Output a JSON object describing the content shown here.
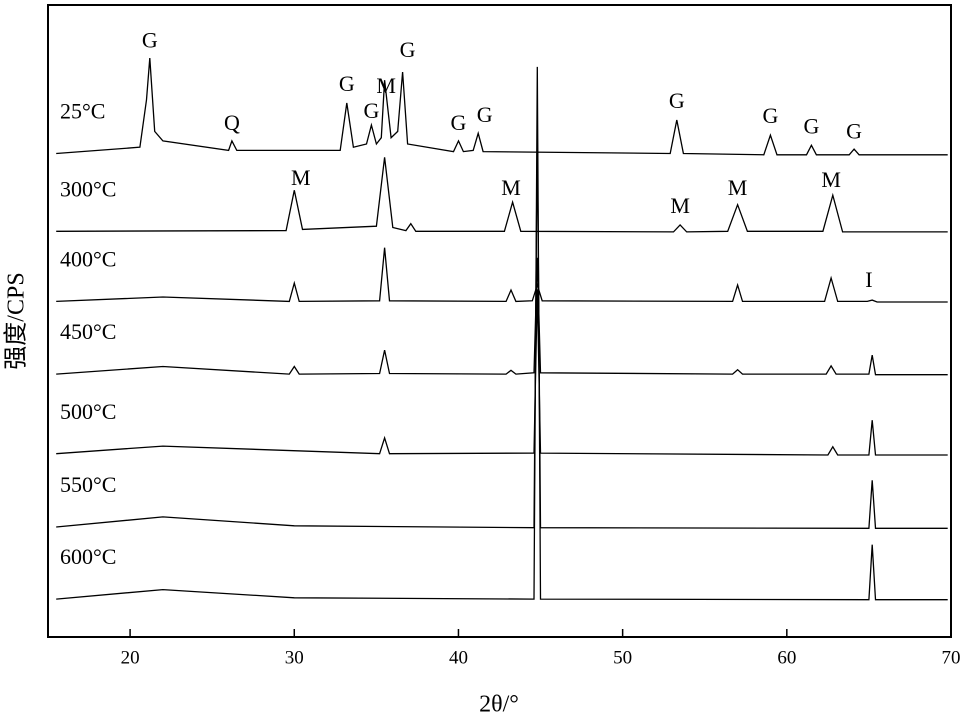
{
  "chart_data": {
    "type": "line",
    "xlabel": "2θ/°",
    "ylabel": "强度/CPS",
    "xlim": [
      15,
      70
    ],
    "xticks": [
      20,
      30,
      40,
      50,
      60,
      70
    ],
    "ylim": [
      0,
      100
    ],
    "color": "#000000",
    "series": [
      {
        "name": "25°C",
        "x": [
          15.5,
          20.6,
          21.0,
          21.2,
          21.5,
          22,
          26.0,
          26.2,
          26.5,
          32.8,
          33.2,
          33.6,
          34.4,
          34.7,
          35.0,
          35.3,
          35.5,
          35.9,
          36.3,
          36.6,
          36.9,
          39.7,
          40.0,
          40.3,
          40.9,
          41.2,
          41.5,
          52.9,
          53.3,
          53.7,
          58.6,
          59.0,
          59.4,
          61.2,
          61.5,
          61.8,
          63.8,
          64.1,
          64.4,
          69.8
        ],
        "values": [
          76.5,
          77.5,
          85,
          91.6,
          80,
          78.5,
          77,
          78.5,
          77,
          77,
          84.5,
          77.5,
          78,
          81,
          78,
          79,
          88.1,
          79,
          80,
          89.4,
          78,
          76.8,
          78.5,
          76.8,
          77,
          79.7,
          76.8,
          76.5,
          81.8,
          76.5,
          76.3,
          79.4,
          76.3,
          76.3,
          77.8,
          76.3,
          76.3,
          77.2,
          76.3,
          76.3
        ]
      },
      {
        "name": "300°C",
        "x": [
          15.5,
          29.5,
          30.0,
          30.5,
          35.0,
          35.5,
          36.0,
          36.8,
          37.1,
          37.4,
          42.8,
          43.3,
          43.8,
          53.1,
          53.5,
          53.9,
          56.4,
          57.0,
          57.6,
          62.2,
          62.8,
          63.4,
          69.8
        ],
        "values": [
          64.2,
          64.3,
          70.7,
          64.5,
          65,
          75.9,
          64.8,
          64.3,
          65.4,
          64.2,
          64.2,
          68.8,
          64.2,
          64.1,
          65.2,
          64.1,
          64.2,
          68.4,
          64.2,
          64.2,
          69.9,
          64.1,
          64.1
        ]
      },
      {
        "name": "400°C",
        "x": [
          15.5,
          22,
          29.7,
          30.0,
          30.3,
          35.2,
          35.5,
          35.8,
          42.9,
          43.2,
          43.5,
          44.5,
          44.8,
          45.1,
          56.7,
          57.0,
          57.3,
          62.3,
          62.7,
          63.1,
          64.9,
          65.2,
          65.5,
          69.8
        ],
        "values": [
          53.1,
          53.8,
          53.1,
          56,
          53.1,
          53.2,
          61.6,
          53.2,
          53.1,
          54.9,
          53.1,
          53.2,
          55.7,
          53.2,
          53.1,
          55.7,
          53.1,
          53.1,
          56.8,
          53.1,
          53.1,
          53.3,
          53.0,
          53.0
        ]
      },
      {
        "name": "450°C",
        "x": [
          15.5,
          22,
          29.7,
          30.0,
          30.3,
          35.2,
          35.5,
          35.8,
          42.9,
          43.2,
          43.5,
          44.6,
          44.8,
          45.0,
          56.7,
          57.0,
          57.3,
          62.4,
          62.7,
          63.0,
          65.0,
          65.2,
          65.4,
          69.8
        ],
        "values": [
          41.6,
          42.8,
          41.6,
          42.8,
          41.6,
          41.7,
          45.4,
          41.7,
          41.6,
          42.2,
          41.6,
          41.8,
          60,
          41.8,
          41.6,
          42.3,
          41.6,
          41.6,
          42.9,
          41.6,
          41.6,
          44.6,
          41.5,
          41.5
        ]
      },
      {
        "name": "500°C",
        "x": [
          15.5,
          22,
          35.2,
          35.5,
          35.8,
          44.6,
          44.8,
          45.0,
          62.5,
          62.8,
          63.1,
          65.0,
          65.2,
          65.4,
          69.8
        ],
        "values": [
          29.0,
          30.2,
          29.0,
          31.5,
          29.0,
          29.1,
          55,
          29.1,
          28.8,
          30.1,
          28.8,
          28.8,
          34.3,
          28.8,
          28.8
        ]
      },
      {
        "name": "550°C",
        "x": [
          15.5,
          22,
          30,
          44.6,
          44.8,
          45.0,
          65.0,
          65.2,
          65.4,
          69.8
        ],
        "values": [
          17.4,
          19.0,
          17.6,
          17.3,
          80,
          17.3,
          17.2,
          24.8,
          17.2,
          17.2
        ]
      },
      {
        "name": "600°C",
        "x": [
          15.5,
          22,
          30,
          44.6,
          44.8,
          45.0,
          65.0,
          65.2,
          65.4,
          69.8
        ],
        "values": [
          6.0,
          7.5,
          6.2,
          6.0,
          90.2,
          6.0,
          5.9,
          14.6,
          5.9,
          5.9
        ]
      }
    ],
    "annotations": [
      {
        "text": "G",
        "x": 21.2,
        "y": 94.1
      },
      {
        "text": "Q",
        "x": 26.2,
        "y": 81
      },
      {
        "text": "G",
        "x": 33.2,
        "y": 87.2
      },
      {
        "text": "G",
        "x": 34.7,
        "y": 82.9
      },
      {
        "text": "M",
        "x": 35.6,
        "y": 86.9
      },
      {
        "text": "G",
        "x": 36.9,
        "y": 92.6
      },
      {
        "text": "G",
        "x": 40.0,
        "y": 81
      },
      {
        "text": "G",
        "x": 41.6,
        "y": 82.3
      },
      {
        "text": "G",
        "x": 53.3,
        "y": 84.5
      },
      {
        "text": "G",
        "x": 59.0,
        "y": 82.1
      },
      {
        "text": "G",
        "x": 61.5,
        "y": 80.5
      },
      {
        "text": "G",
        "x": 64.1,
        "y": 79.7
      },
      {
        "text": "M",
        "x": 30.4,
        "y": 72.3
      },
      {
        "text": "M",
        "x": 43.2,
        "y": 70.7
      },
      {
        "text": "M",
        "x": 53.5,
        "y": 67.9
      },
      {
        "text": "M",
        "x": 57.0,
        "y": 70.7
      },
      {
        "text": "M",
        "x": 62.7,
        "y": 72
      },
      {
        "text": "I",
        "x": 65.0,
        "y": 56.2
      }
    ]
  }
}
